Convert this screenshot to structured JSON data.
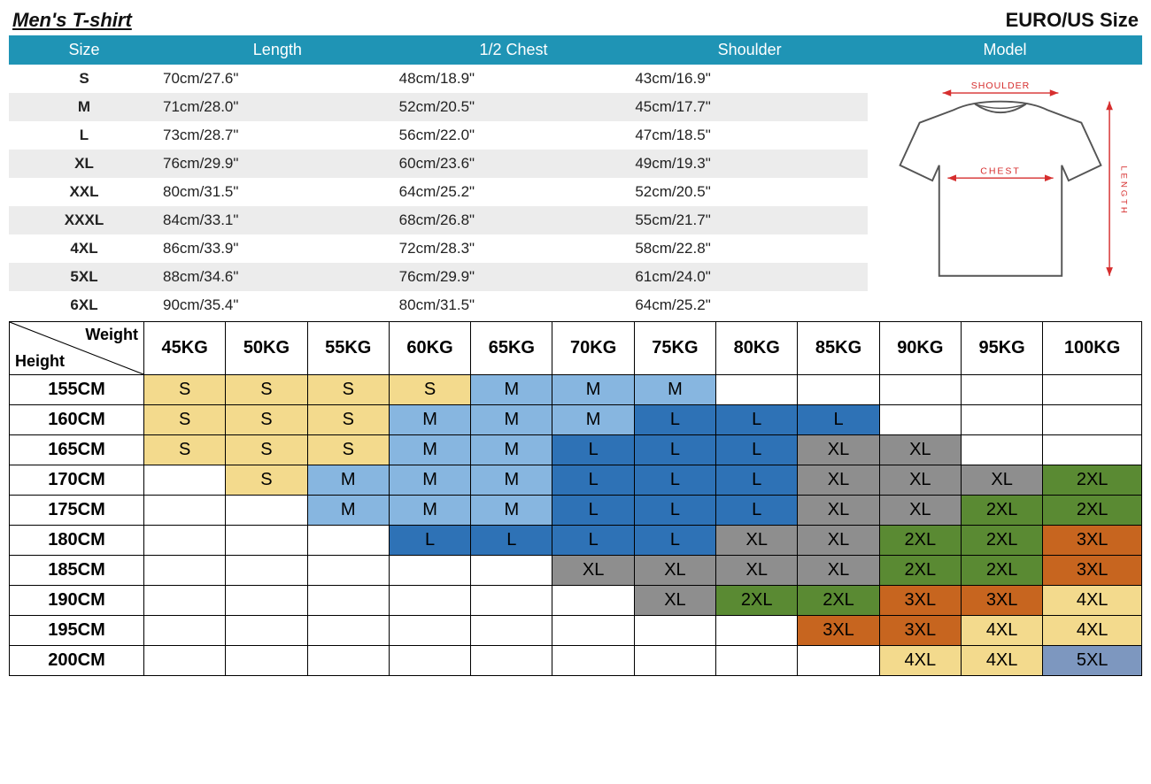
{
  "header": {
    "title": "Men's T-shirt",
    "size_std": "EURO/US Size"
  },
  "colors": {
    "header_bg": "#1f94b5",
    "stripe": "#ececec",
    "cell": {
      "S": "#f3da8d",
      "M": "#87b6e0",
      "L": "#2e72b6",
      "XL": "#8e8e8e",
      "2XL": "#5a8a33",
      "3XL": "#c7651f",
      "4XL": "#f3da8d",
      "5XL": "#7d97bf"
    }
  },
  "size_table": {
    "columns": [
      "Size",
      "Length",
      "1/2 Chest",
      "Shoulder",
      "Model"
    ],
    "rows": [
      {
        "size": "S",
        "length": "70cm/27.6\"",
        "chest": "48cm/18.9\"",
        "shoulder": "43cm/16.9\""
      },
      {
        "size": "M",
        "length": "71cm/28.0\"",
        "chest": "52cm/20.5\"",
        "shoulder": "45cm/17.7\""
      },
      {
        "size": "L",
        "length": "73cm/28.7\"",
        "chest": "56cm/22.0\"",
        "shoulder": "47cm/18.5\""
      },
      {
        "size": "XL",
        "length": "76cm/29.9\"",
        "chest": "60cm/23.6\"",
        "shoulder": "49cm/19.3\""
      },
      {
        "size": "XXL",
        "length": "80cm/31.5\"",
        "chest": "64cm/25.2\"",
        "shoulder": "52cm/20.5\""
      },
      {
        "size": "XXXL",
        "length": "84cm/33.1\"",
        "chest": "68cm/26.8\"",
        "shoulder": "55cm/21.7\""
      },
      {
        "size": "4XL",
        "length": "86cm/33.9\"",
        "chest": "72cm/28.3\"",
        "shoulder": "58cm/22.8\""
      },
      {
        "size": "5XL",
        "length": "88cm/34.6\"",
        "chest": "76cm/29.9\"",
        "shoulder": "61cm/24.0\""
      },
      {
        "size": "6XL",
        "length": "90cm/35.4\"",
        "chest": "80cm/31.5\"",
        "shoulder": "64cm/25.2\""
      }
    ]
  },
  "diagram": {
    "shoulder": "SHOULDER",
    "chest": "CHEST",
    "length": "LENGTH"
  },
  "rec_table": {
    "corner": {
      "weight": "Weight",
      "height": "Height"
    },
    "weights": [
      "45KG",
      "50KG",
      "55KG",
      "60KG",
      "65KG",
      "70KG",
      "75KG",
      "80KG",
      "85KG",
      "90KG",
      "95KG",
      "100KG"
    ],
    "heights": [
      "155CM",
      "160CM",
      "165CM",
      "170CM",
      "175CM",
      "180CM",
      "185CM",
      "190CM",
      "195CM",
      "200CM"
    ],
    "grid": [
      [
        "S",
        "S",
        "S",
        "S",
        "M",
        "M",
        "M",
        "",
        "",
        "",
        "",
        ""
      ],
      [
        "S",
        "S",
        "S",
        "M",
        "M",
        "M",
        "L",
        "L",
        "L",
        "",
        "",
        ""
      ],
      [
        "S",
        "S",
        "S",
        "M",
        "M",
        "L",
        "L",
        "L",
        "XL",
        "XL",
        "",
        ""
      ],
      [
        "",
        "S",
        "M",
        "M",
        "M",
        "L",
        "L",
        "L",
        "XL",
        "XL",
        "XL",
        "2XL"
      ],
      [
        "",
        "",
        "M",
        "M",
        "M",
        "L",
        "L",
        "L",
        "XL",
        "XL",
        "2XL",
        "2XL"
      ],
      [
        "",
        "",
        "",
        "L",
        "L",
        "L",
        "L",
        "XL",
        "XL",
        "2XL",
        "2XL",
        "3XL"
      ],
      [
        "",
        "",
        "",
        "",
        "",
        "XL",
        "XL",
        "XL",
        "XL",
        "2XL",
        "2XL",
        "3XL"
      ],
      [
        "",
        "",
        "",
        "",
        "",
        "",
        "XL",
        "2XL",
        "2XL",
        "3XL",
        "3XL",
        "4XL"
      ],
      [
        "",
        "",
        "",
        "",
        "",
        "",
        "",
        "",
        "3XL",
        "3XL",
        "4XL",
        "4XL"
      ],
      [
        "",
        "",
        "",
        "",
        "",
        "",
        "",
        "",
        "",
        "4XL",
        "4XL",
        "5XL"
      ]
    ]
  }
}
